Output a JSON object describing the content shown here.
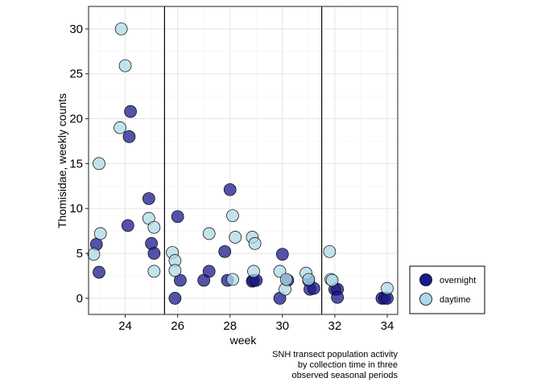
{
  "chart_data": {
    "type": "scatter",
    "xlabel": "week",
    "ylabel": "Thomisidae, weekly counts",
    "caption": [
      "SNH transect population activity",
      "by collection time in three",
      "observed seasonal periods"
    ],
    "xlim": [
      22.6,
      34.4
    ],
    "ylim": [
      -1.8,
      32.5
    ],
    "xticks": [
      24,
      26,
      28,
      30,
      32,
      34
    ],
    "yticks": [
      0,
      5,
      10,
      15,
      20,
      25,
      30
    ],
    "vlines": [
      25.5,
      31.5
    ],
    "grid": true,
    "legend_position": "right",
    "series": [
      {
        "name": "overnight",
        "color": "#1a1a8c",
        "points": [
          [
            22.9,
            6
          ],
          [
            23.0,
            2.9
          ],
          [
            24.1,
            8.1
          ],
          [
            24.15,
            18
          ],
          [
            24.2,
            20.8
          ],
          [
            24.9,
            11.1
          ],
          [
            25.0,
            6.1
          ],
          [
            25.1,
            5
          ],
          [
            26.0,
            9.1
          ],
          [
            25.9,
            0
          ],
          [
            26.1,
            2
          ],
          [
            27.0,
            2
          ],
          [
            27.2,
            3
          ],
          [
            27.8,
            5.2
          ],
          [
            27.9,
            2
          ],
          [
            28.0,
            12.1
          ],
          [
            28.85,
            1.9
          ],
          [
            28.9,
            2
          ],
          [
            29.0,
            2
          ],
          [
            29.9,
            0
          ],
          [
            30.0,
            4.9
          ],
          [
            30.2,
            2
          ],
          [
            31.0,
            2
          ],
          [
            31.05,
            1
          ],
          [
            31.2,
            1.1
          ],
          [
            32.0,
            1
          ],
          [
            32.1,
            1
          ],
          [
            32.1,
            0.1
          ],
          [
            33.8,
            0
          ],
          [
            33.9,
            0
          ],
          [
            34.0,
            0
          ]
        ]
      },
      {
        "name": "daytime",
        "color": "#add8e6",
        "points": [
          [
            22.8,
            4.9
          ],
          [
            23.0,
            15
          ],
          [
            23.05,
            7.2
          ],
          [
            23.8,
            19
          ],
          [
            23.85,
            30
          ],
          [
            24.0,
            25.9
          ],
          [
            24.9,
            8.9
          ],
          [
            25.1,
            7.9
          ],
          [
            25.1,
            3
          ],
          [
            25.8,
            5.1
          ],
          [
            25.9,
            4.2
          ],
          [
            25.9,
            3.1
          ],
          [
            27.2,
            7.2
          ],
          [
            28.1,
            9.2
          ],
          [
            28.2,
            6.8
          ],
          [
            28.1,
            2.1
          ],
          [
            28.85,
            6.8
          ],
          [
            28.9,
            3
          ],
          [
            28.95,
            6.1
          ],
          [
            29.9,
            3
          ],
          [
            30.1,
            1
          ],
          [
            30.15,
            2.1
          ],
          [
            30.9,
            2.8
          ],
          [
            31.0,
            2.1
          ],
          [
            31.8,
            5.2
          ],
          [
            31.85,
            2.1
          ],
          [
            31.9,
            2
          ],
          [
            34.0,
            1.1
          ]
        ]
      }
    ]
  }
}
